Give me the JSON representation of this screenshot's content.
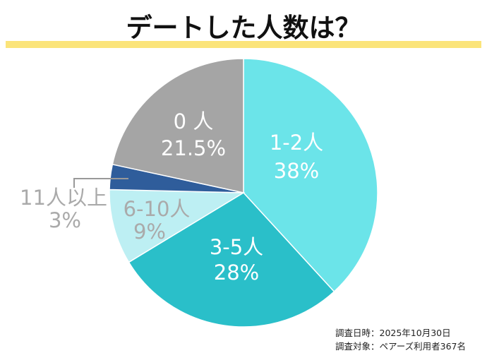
{
  "chart_data": {
    "type": "pie",
    "title": "デートした人数は？",
    "slices": [
      {
        "label": "1-2人",
        "value": 38,
        "value_label": "38%",
        "color": "#6be4e9"
      },
      {
        "label": "3-5人",
        "value": 28,
        "value_label": "28%",
        "color": "#2abfc9"
      },
      {
        "label": "6-10人",
        "value": 9,
        "value_label": "9%",
        "color": "#bdeff3"
      },
      {
        "label": "11人以上",
        "value": 3,
        "value_label": "3%",
        "color": "#2f5d9b"
      },
      {
        "label": "0 人",
        "value": 21.5,
        "value_label": "21.5%",
        "color": "#a5a5a5"
      }
    ],
    "start": "top",
    "direction": "clockwise"
  },
  "colors": {
    "title_underline": "#fbe47a",
    "outside_label": "#aaaaaa"
  },
  "footnote": {
    "date": "調査日時：2025年10月30日",
    "subjects": "調査対象：ペアーズ利用者367名"
  }
}
